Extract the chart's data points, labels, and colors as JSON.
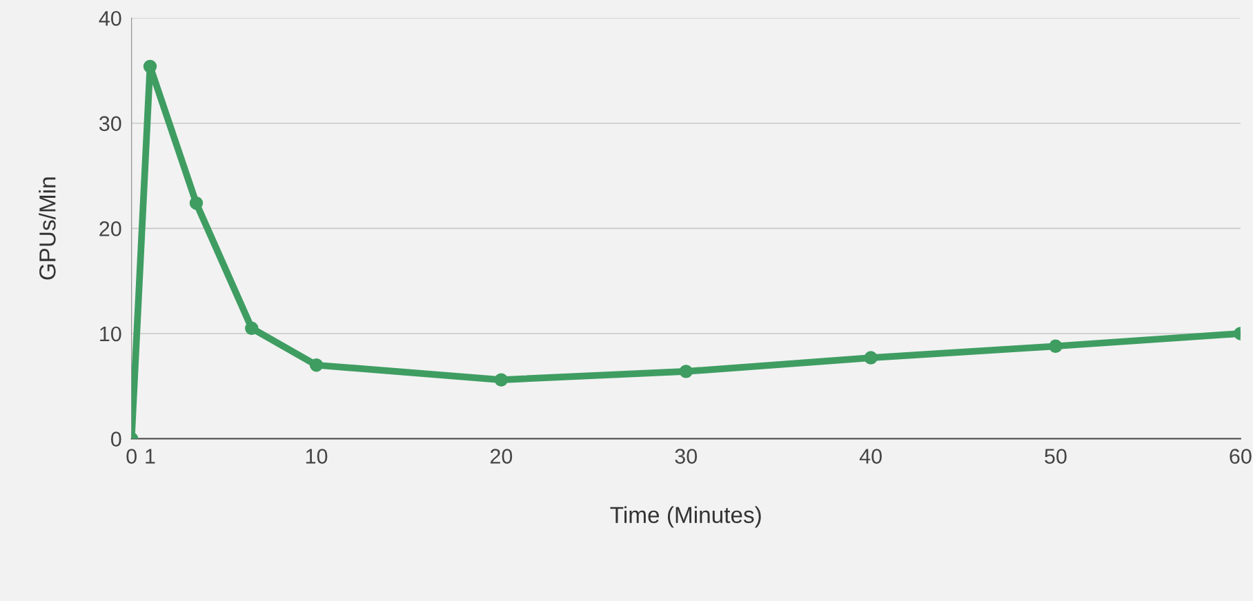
{
  "chart_data": {
    "type": "line",
    "xlabel": "Time (Minutes)",
    "ylabel": "GPUs/Min",
    "x": [
      0,
      1,
      3.5,
      6.5,
      10,
      20,
      30,
      40,
      50,
      60
    ],
    "series": [
      {
        "color": "#3f9d62",
        "values": [
          0,
          35.4,
          22.4,
          10.5,
          7.0,
          5.6,
          6.4,
          7.7,
          8.8,
          10.0
        ]
      }
    ],
    "xlim": [
      0,
      60
    ],
    "xticks": [
      0,
      1,
      10,
      20,
      30,
      40,
      50,
      60
    ],
    "ylim": [
      0,
      40
    ],
    "yticks": [
      0,
      10,
      20,
      30,
      40
    ],
    "grid": "y",
    "marker": "circle",
    "line_style": "solid"
  }
}
